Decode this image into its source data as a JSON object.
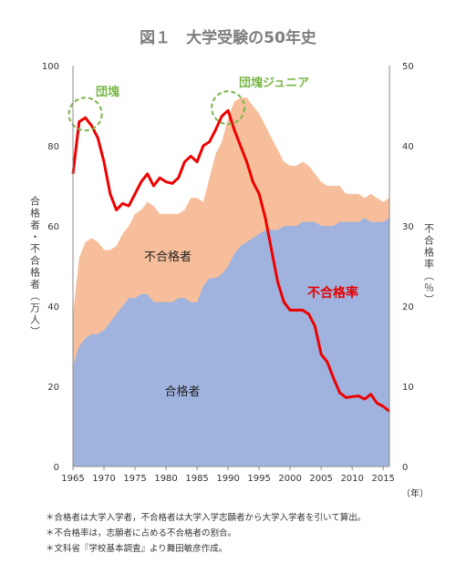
{
  "chart_data": {
    "type": "area",
    "title": "図１　大学受験の50年史",
    "x": [
      1965,
      1966,
      1967,
      1968,
      1969,
      1970,
      1971,
      1972,
      1973,
      1974,
      1975,
      1976,
      1977,
      1978,
      1979,
      1980,
      1981,
      1982,
      1983,
      1984,
      1985,
      1986,
      1987,
      1988,
      1989,
      1990,
      1991,
      1992,
      1993,
      1994,
      1995,
      1996,
      1997,
      1998,
      1999,
      2000,
      2001,
      2002,
      2003,
      2004,
      2005,
      2006,
      2007,
      2008,
      2009,
      2010,
      2011,
      2012,
      2013,
      2014,
      2015,
      2016
    ],
    "xticks": [
      "1965",
      "1970",
      "1975",
      "1980",
      "1985",
      "1990",
      "1995",
      "2000",
      "2005",
      "2010",
      "2015"
    ],
    "x_unit": "（年）",
    "xlim": [
      1965,
      2016
    ],
    "y_left": {
      "label": "合格者・不合格者（万人）",
      "ylim": [
        0,
        100
      ],
      "ticks": [
        "0",
        "20",
        "40",
        "60",
        "80",
        "100"
      ]
    },
    "y_right": {
      "label": "不合格率（％）",
      "ylim": [
        0,
        50
      ],
      "ticks": [
        "0",
        "10",
        "20",
        "30",
        "40",
        "50"
      ]
    },
    "grid": false,
    "series": [
      {
        "name": "合格者",
        "axis": "left",
        "color": "#9fb3de",
        "values": [
          25,
          30,
          32,
          33,
          33,
          34,
          36,
          38,
          40,
          42,
          42,
          43,
          43,
          41,
          41,
          41,
          41,
          42,
          42,
          41,
          41,
          45,
          47,
          47,
          48,
          50,
          53,
          55,
          56,
          57,
          58,
          59,
          59,
          59,
          60,
          60,
          60,
          61,
          61,
          61,
          60,
          60,
          60,
          61,
          61,
          61,
          61,
          62,
          61,
          61,
          61,
          62
        ]
      },
      {
        "name": "不合格者",
        "axis": "left",
        "color": "#f7be9b",
        "stacked_total": true,
        "values": [
          38,
          52,
          56,
          57,
          56,
          54,
          54,
          55,
          58,
          60,
          63,
          64,
          66,
          65,
          63,
          63,
          63,
          63,
          64,
          67,
          67,
          66,
          72,
          78,
          81,
          87,
          91,
          92,
          92,
          90,
          88,
          85,
          82,
          79,
          76,
          75,
          75,
          76,
          75,
          73,
          71,
          70,
          70,
          70,
          68,
          68,
          68,
          67,
          68,
          67,
          66,
          67
        ]
      },
      {
        "name": "不合格率",
        "axis": "right",
        "color": "#ee0000",
        "values": [
          36.5,
          43,
          43.5,
          42.5,
          41,
          38,
          34,
          32,
          32.8,
          32.5,
          34,
          35.5,
          36.5,
          35,
          36,
          35.5,
          35.3,
          36,
          38,
          38.7,
          38,
          40,
          40.5,
          42,
          43.7,
          44.4,
          42,
          40,
          38,
          35.5,
          34,
          31,
          27,
          23,
          20.5,
          19.5,
          19.5,
          19.5,
          19,
          17.5,
          14,
          13,
          11,
          9.2,
          8.6,
          8.7,
          8.8,
          8.4,
          9,
          7.9,
          7.5,
          6.9
        ]
      }
    ],
    "annotations": [
      "団塊",
      "団塊ジュニア"
    ],
    "inline_labels": [
      "合格者",
      "不合格者",
      "不合格率"
    ]
  },
  "notes": [
    "＊合格者は大学入学者，不合格者は大学入学志願者から大学入学者を引いて算出。",
    "＊不合格率は，志願者に占める不合格者の割合。",
    "＊文科省『学校基本調査』より舞田敏彦作成。"
  ],
  "colors": {
    "annotation": "#7ab648",
    "rate_label": "#e60000",
    "axis": "#444444"
  }
}
